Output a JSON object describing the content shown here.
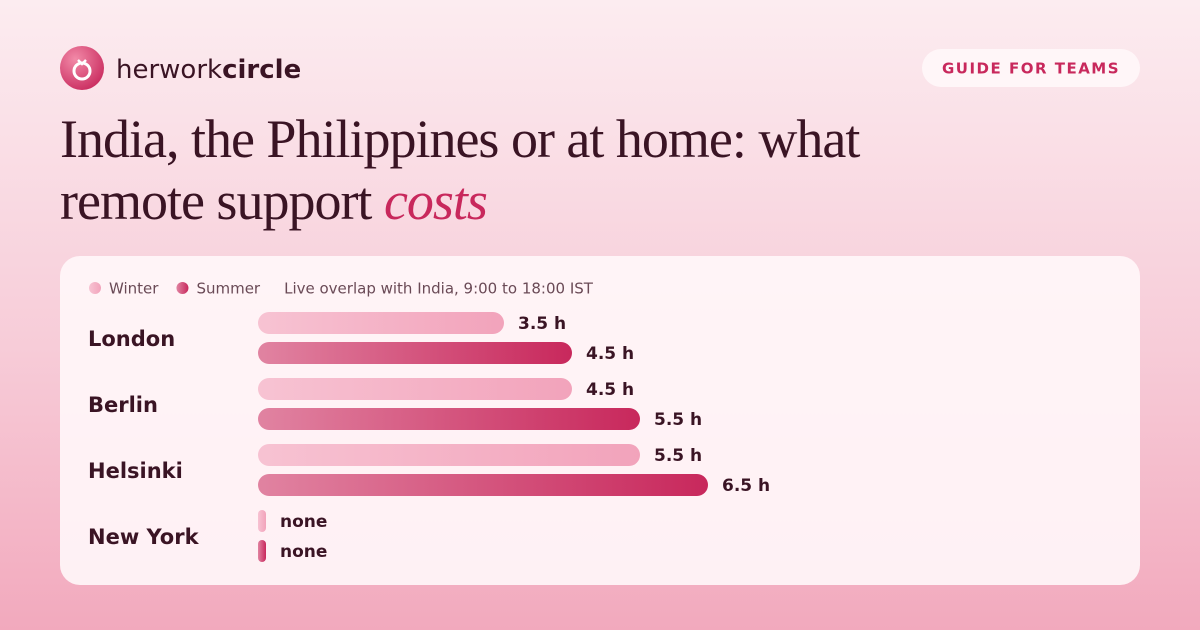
{
  "brand": {
    "regular": "herwork",
    "bold": "circle"
  },
  "badge": "GUIDE FOR TEAMS",
  "title": "India, the Philippines or at home: what remote support",
  "title_emphasis": "costs",
  "chart_data": {
    "type": "bar",
    "orientation": "horizontal",
    "note": "Live overlap with India, 9:00 to 18:00 IST",
    "categories": [
      "London",
      "Berlin",
      "Helsinki",
      "New York"
    ],
    "series": [
      {
        "name": "Winter",
        "color": "#f2a3bb",
        "values": [
          3.5,
          4.5,
          5.5,
          0
        ],
        "value_labels": [
          "3.5 h",
          "4.5 h",
          "5.5 h",
          "none"
        ]
      },
      {
        "name": "Summer",
        "color": "#c8285c",
        "values": [
          4.5,
          5.5,
          6.5,
          0
        ],
        "value_labels": [
          "4.5 h",
          "5.5 h",
          "6.5 h",
          "none"
        ]
      }
    ]
  }
}
